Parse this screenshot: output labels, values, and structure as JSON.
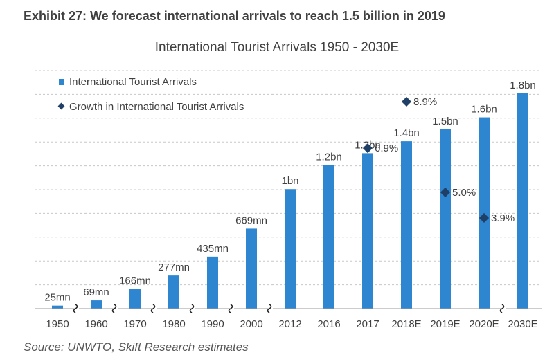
{
  "header": {
    "exhibit_title": "Exhibit 27: We forecast international arrivals to reach 1.5 billion in 2019"
  },
  "footer": {
    "source": "Source: UNWTO, Skift Research estimates"
  },
  "colors": {
    "bar": "#2e86d0",
    "marker": "#1f3f66",
    "gridline": "#c8c8c8",
    "text": "#404040"
  },
  "chart_data": {
    "type": "bar",
    "title": "International Tourist Arrivals 1950 - 2030E",
    "xlabel": "",
    "ylabel": "",
    "ylim": [
      0,
      1.8
    ],
    "grid": true,
    "legend_position": "top-left",
    "categories": [
      "1950",
      "1960",
      "1970",
      "1980",
      "1990",
      "2000",
      "2012",
      "2016",
      "2017",
      "2018E",
      "2019E",
      "2020E",
      "2030E"
    ],
    "series": [
      {
        "name": "International Tourist Arrivals",
        "kind": "bar",
        "values": [
          0.025,
          0.069,
          0.166,
          0.277,
          0.435,
          0.669,
          1.0,
          1.2,
          1.3,
          1.4,
          1.5,
          1.6,
          1.8
        ],
        "labels": [
          "25mn",
          "69mn",
          "166mn",
          "277mn",
          "435mn",
          "669mn",
          "1bn",
          "1.2bn",
          "1.3bn",
          "1.4bn",
          "1.5bn",
          "1.6bn",
          "1.8bn"
        ]
      },
      {
        "name": "Growth in International Tourist Arrivals",
        "kind": "marker",
        "unit": "%",
        "values": [
          null,
          null,
          null,
          null,
          null,
          null,
          null,
          null,
          6.9,
          8.9,
          5.0,
          3.9,
          null
        ],
        "labels": [
          "",
          "",
          "",
          "",
          "",
          "",
          "",
          "",
          "6.9%",
          "8.9%",
          "5.0%",
          "3.9%",
          ""
        ]
      }
    ],
    "axis_breaks_after": [
      "1950",
      "1960",
      "1970",
      "1980",
      "1990",
      "2000",
      "2020E"
    ]
  }
}
